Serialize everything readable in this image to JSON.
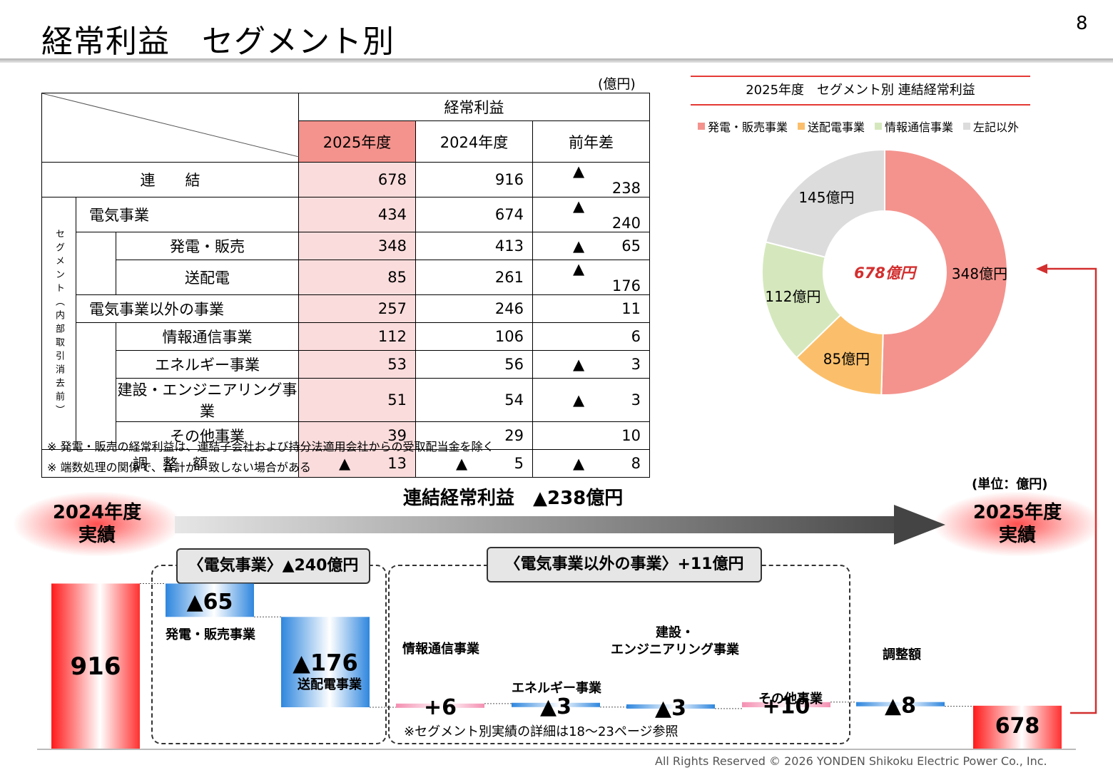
{
  "page": {
    "title": "経常利益　セグメント別",
    "page_number": "8",
    "footer": "All Rights Reserved © 2026 YONDEN Shikoku Electric Power Co., Inc."
  },
  "table": {
    "unit": "(億円)",
    "group_header": "経常利益",
    "columns": [
      "2025年度",
      "2024年度",
      "前年差"
    ],
    "vertical_label": "セグメント（内部取引消去前）",
    "rows": {
      "consolidated": {
        "label": "連　　結",
        "v2025": "678",
        "v2024": "916",
        "diff_mark": "▲",
        "diff": "238"
      },
      "electric": {
        "label": "電気事業",
        "v2025": "434",
        "v2024": "674",
        "diff_mark": "▲",
        "diff": "240"
      },
      "gen_sales": {
        "label": "発電・販売",
        "v2025": "348",
        "v2024": "413",
        "diff_mark": "▲",
        "diff": "65"
      },
      "transmission": {
        "label": "送配電",
        "v2025": "85",
        "v2024": "261",
        "diff_mark": "▲",
        "diff": "176"
      },
      "non_electric": {
        "label": "電気事業以外の事業",
        "v2025": "257",
        "v2024": "246",
        "diff_mark": "",
        "diff": "11"
      },
      "ict": {
        "label": "情報通信事業",
        "v2025": "112",
        "v2024": "106",
        "diff_mark": "",
        "diff": "6"
      },
      "energy": {
        "label": "エネルギー事業",
        "v2025": "53",
        "v2024": "56",
        "diff_mark": "▲",
        "diff": "3"
      },
      "construction": {
        "label": "建設・エンジニアリング事業",
        "v2025": "51",
        "v2024": "54",
        "diff_mark": "▲",
        "diff": "3"
      },
      "other": {
        "label": "その他事業",
        "v2025": "39",
        "v2024": "29",
        "diff_mark": "",
        "diff": "10"
      },
      "adjustment": {
        "label": "調　整　額",
        "v2025_mark": "▲",
        "v2025": "13",
        "v2024_mark": "▲",
        "v2024": "5",
        "diff_mark": "▲",
        "diff": "8"
      }
    },
    "notes": [
      "※ 発電・販売の経常利益は、連結子会社および持分法適用会社からの受取配当金を除く",
      "※ 端数処理の関係で、合計が一致しない場合がある"
    ]
  },
  "bridge": {
    "title": "連結経常利益　▲238億円",
    "unit": "(単位：億円)",
    "start_label": [
      "2024年度",
      "実績"
    ],
    "end_label": [
      "2025年度",
      "実績"
    ],
    "group_electric": "〈電気事業〉▲240億円",
    "group_non_electric": "〈電気事業以外の事業〉+11億円",
    "reference_note": "※セグメント別実績の詳細は18～23ページ参照",
    "step_labels": {
      "gen_sales": "発電・販売事業",
      "transmission": "送配電事業",
      "ict": "情報通信事業",
      "energy": "エネルギー事業",
      "construction": [
        "建設・",
        "エンジニアリング事業"
      ],
      "other": "その他事業",
      "adjustment": "調整額"
    }
  },
  "chart_data": [
    {
      "type": "pie",
      "title": "2025年度　セグメント別 連結経常利益",
      "center_label": "678億円",
      "legend_position": "top",
      "slices": [
        {
          "name": "発電・販売事業",
          "value": 348,
          "label": "348億円",
          "color": "#f4938d"
        },
        {
          "name": "送配電事業",
          "value": 85,
          "label": "85億円",
          "color": "#fbbf6b"
        },
        {
          "name": "情報通信事業",
          "value": 112,
          "label": "112億円",
          "color": "#d5e8bd"
        },
        {
          "name": "左記以外",
          "value": 145,
          "label": "145億円",
          "color": "#dcdcdc"
        }
      ]
    },
    {
      "type": "bar",
      "subtype": "waterfall",
      "steps": [
        {
          "key": "start",
          "label": "916",
          "value": 916
        },
        {
          "key": "gen_sales",
          "label": "▲65",
          "value": -65
        },
        {
          "key": "transmission",
          "label": "▲176",
          "value": -176
        },
        {
          "key": "ict",
          "label": "+6",
          "value": 6
        },
        {
          "key": "energy",
          "label": "▲3",
          "value": -3
        },
        {
          "key": "construction",
          "label": "▲3",
          "value": -3
        },
        {
          "key": "other",
          "label": "+10",
          "value": 10
        },
        {
          "key": "adjustment",
          "label": "▲8",
          "value": -8
        },
        {
          "key": "end",
          "label": "678",
          "value": 678
        }
      ]
    }
  ]
}
